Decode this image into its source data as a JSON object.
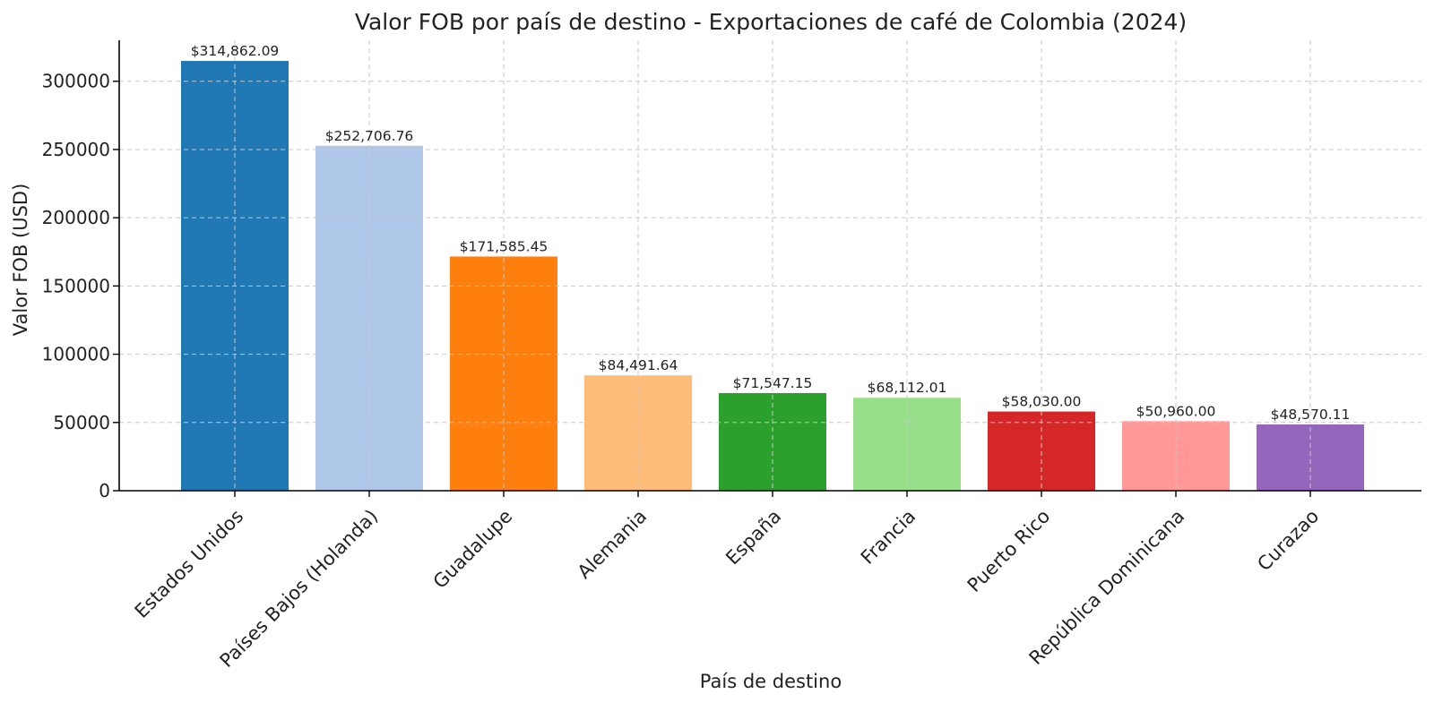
{
  "chart_data": {
    "type": "bar",
    "title": "Valor FOB por país de destino - Exportaciones de café de Colombia (2024)",
    "xlabel": "País de destino",
    "ylabel": "Valor FOB (USD)",
    "ylim": [
      0,
      330000
    ],
    "yticks": [
      0,
      50000,
      100000,
      150000,
      200000,
      250000,
      300000
    ],
    "grid": true,
    "categories": [
      "Estados Unidos",
      "Países Bajos (Holanda)",
      "Guadalupe",
      "Alemania",
      "España",
      "Francia",
      "Puerto Rico",
      "República Dominicana",
      "Curazao"
    ],
    "values": [
      314862.09,
      252706.76,
      171585.45,
      84491.64,
      71547.15,
      68112.01,
      58030.0,
      50960.0,
      48570.11
    ],
    "data_labels": [
      "$314,862.09",
      "$252,706.76",
      "$171,585.45",
      "$84,491.64",
      "$71,547.15",
      "$68,112.01",
      "$58,030.00",
      "$50,960.00",
      "$48,570.11"
    ],
    "colors": [
      "#1f77b4",
      "#aec7e8",
      "#ff7f0e",
      "#ffbb78",
      "#2ca02c",
      "#98df8a",
      "#d62728",
      "#ff9896",
      "#9467bd"
    ]
  }
}
